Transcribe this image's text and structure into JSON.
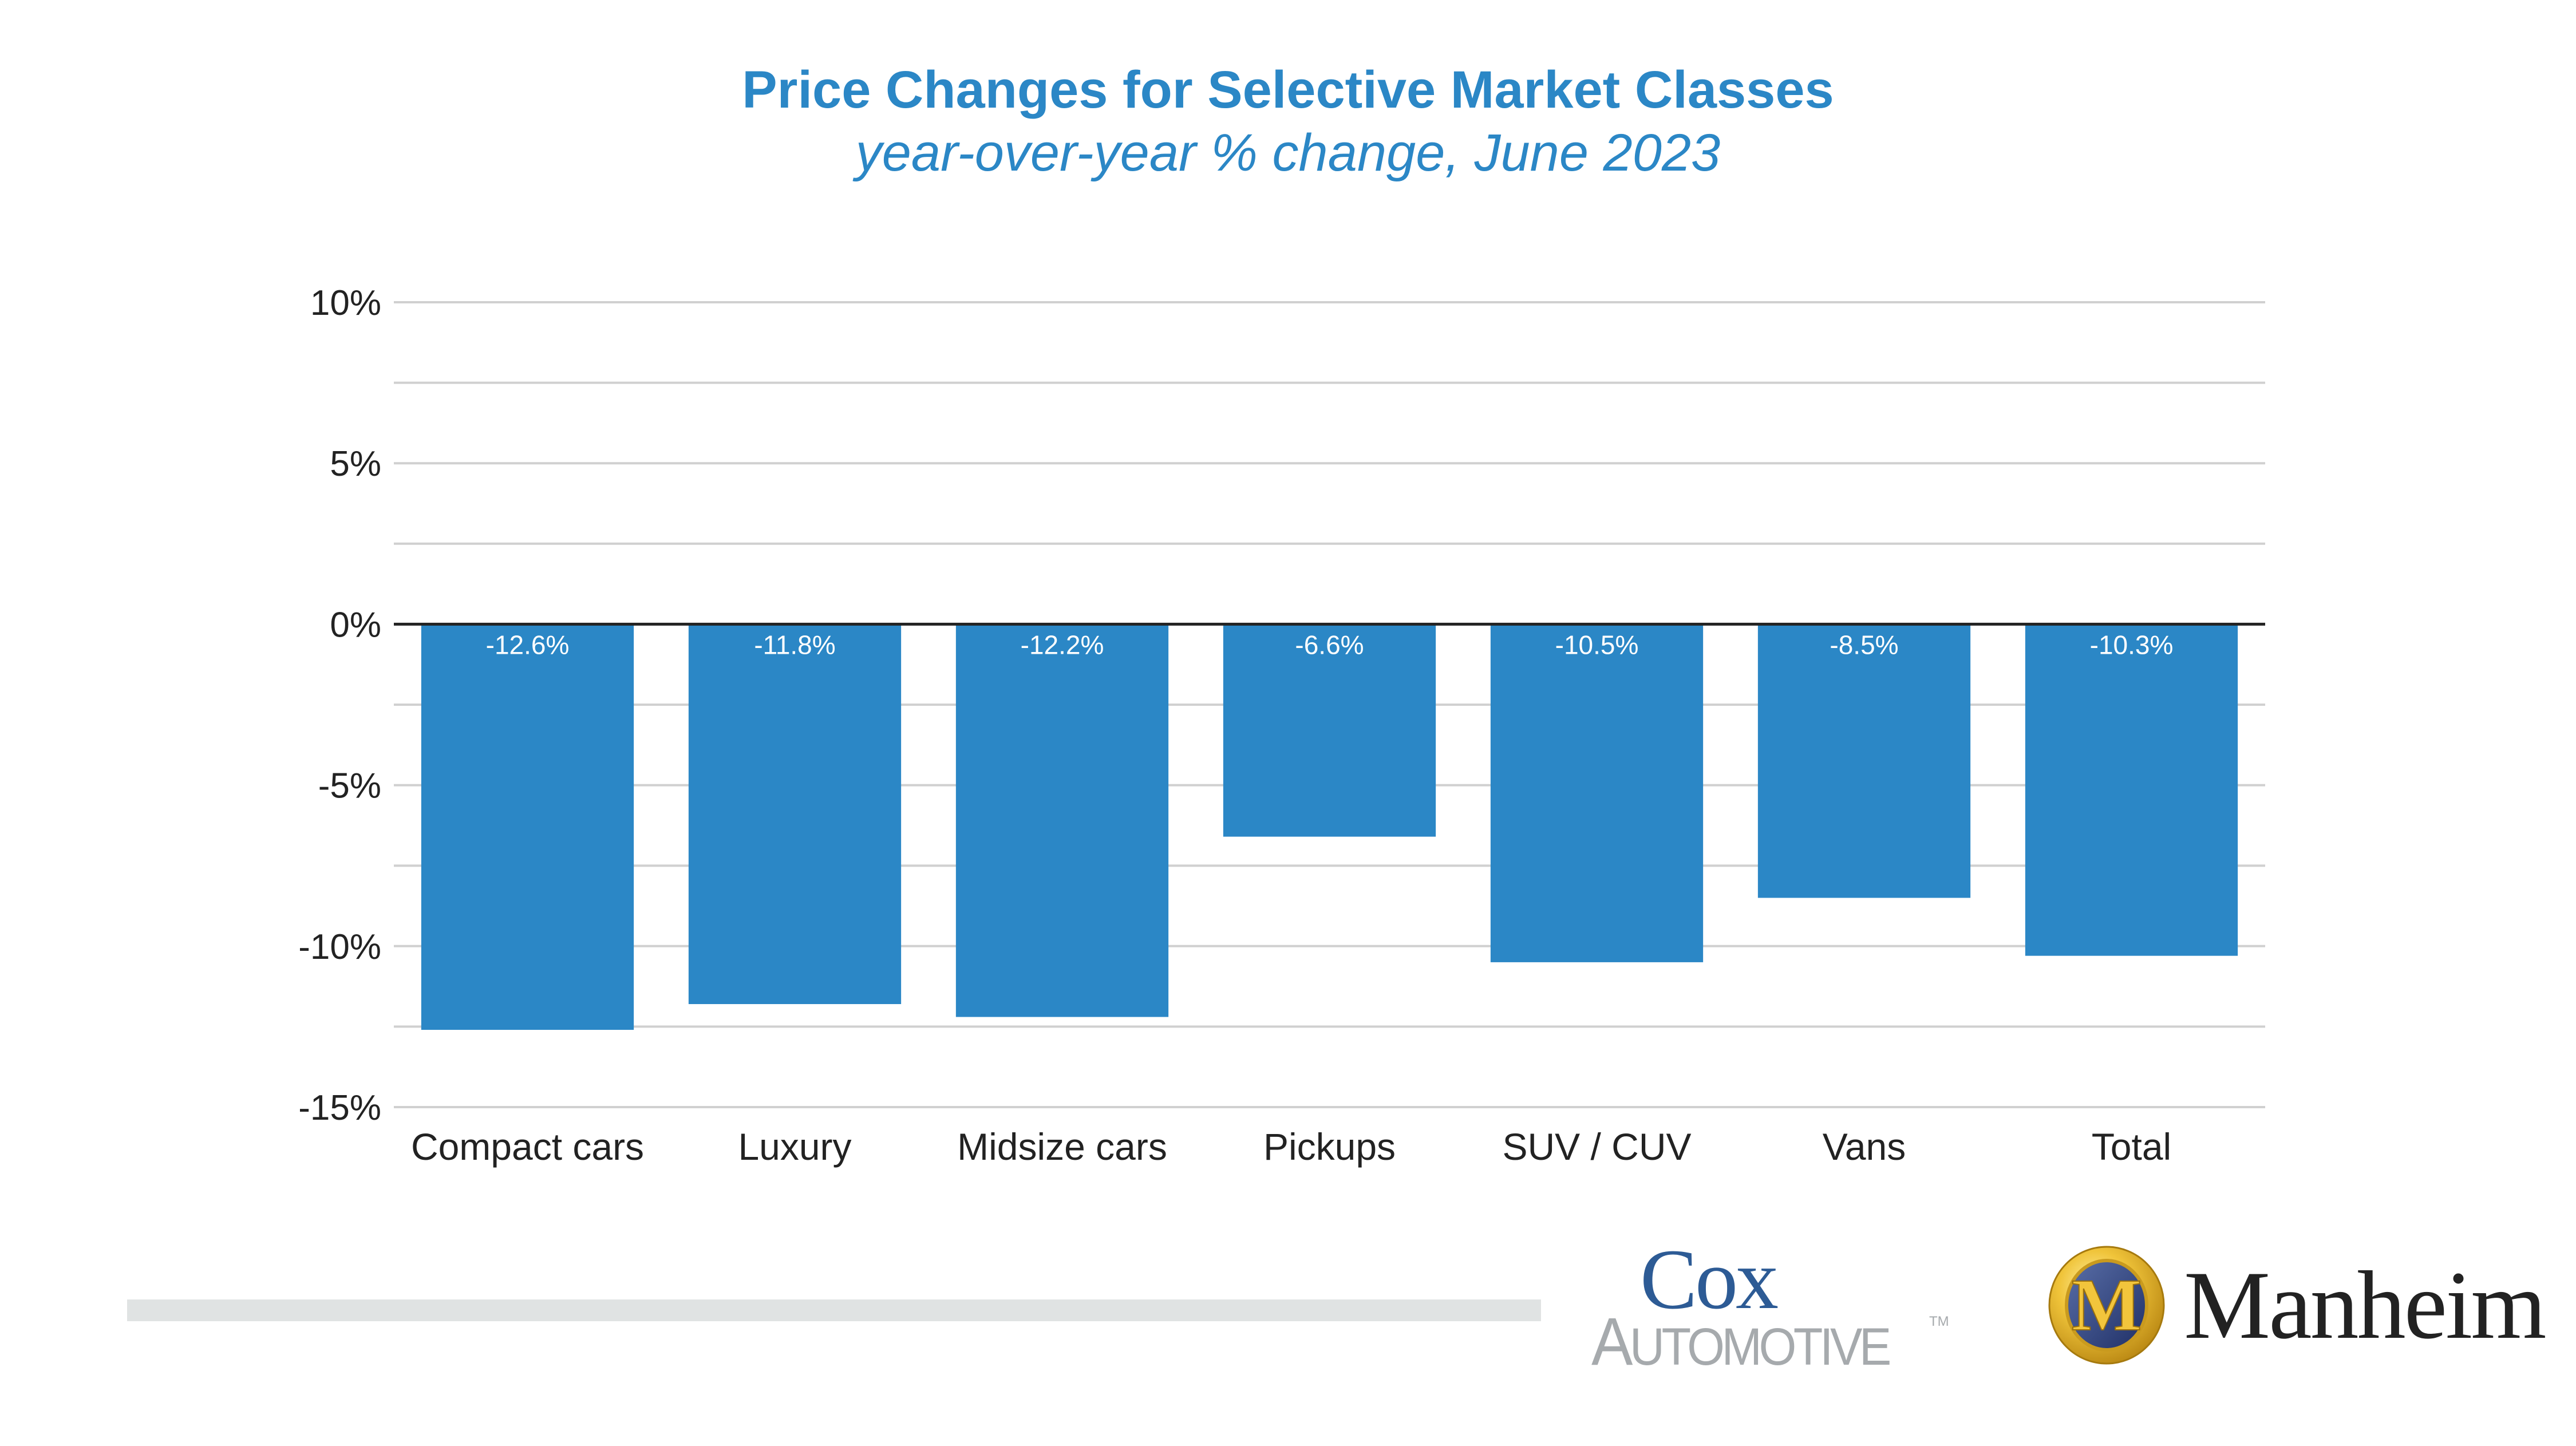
{
  "chart_data": {
    "type": "bar",
    "title": "Price Changes for Selective Market Classes",
    "subtitle": "year-over-year % change, June 2023",
    "xlabel": "",
    "ylabel": "",
    "categories": [
      "Compact cars",
      "Luxury",
      "Midsize cars",
      "Pickups",
      "SUV / CUV",
      "Vans",
      "Total"
    ],
    "values": [
      -12.6,
      -11.8,
      -12.2,
      -6.6,
      -10.5,
      -8.5,
      -10.3
    ],
    "data_labels": [
      "-12.6%",
      "-11.8%",
      "-12.2%",
      "-6.6%",
      "-10.5%",
      "-8.5%",
      "-10.3%"
    ],
    "ylim": [
      -15,
      10
    ],
    "yticks": [
      10,
      5,
      0,
      -5,
      -10,
      -15
    ],
    "ytick_labels": [
      "10%",
      "5%",
      "0%",
      "-5%",
      "-10%",
      "-15%"
    ],
    "minor_gridlines": [
      7.5,
      2.5,
      -2.5,
      -7.5,
      -12.5
    ],
    "grid": true,
    "legend": "none",
    "colors": {
      "bar": "#2b87c6",
      "title": "#2b87c6",
      "grid": "#d0d0d0",
      "zero_line": "#222222",
      "tick_text": "#222222",
      "data_label": "#ffffff"
    }
  },
  "branding": {
    "cox_top": "Cox",
    "cox_bottom": "Automotive",
    "cox_tm": "TM",
    "manheim": "Manheim",
    "manheim_emblem_letter": "M"
  }
}
